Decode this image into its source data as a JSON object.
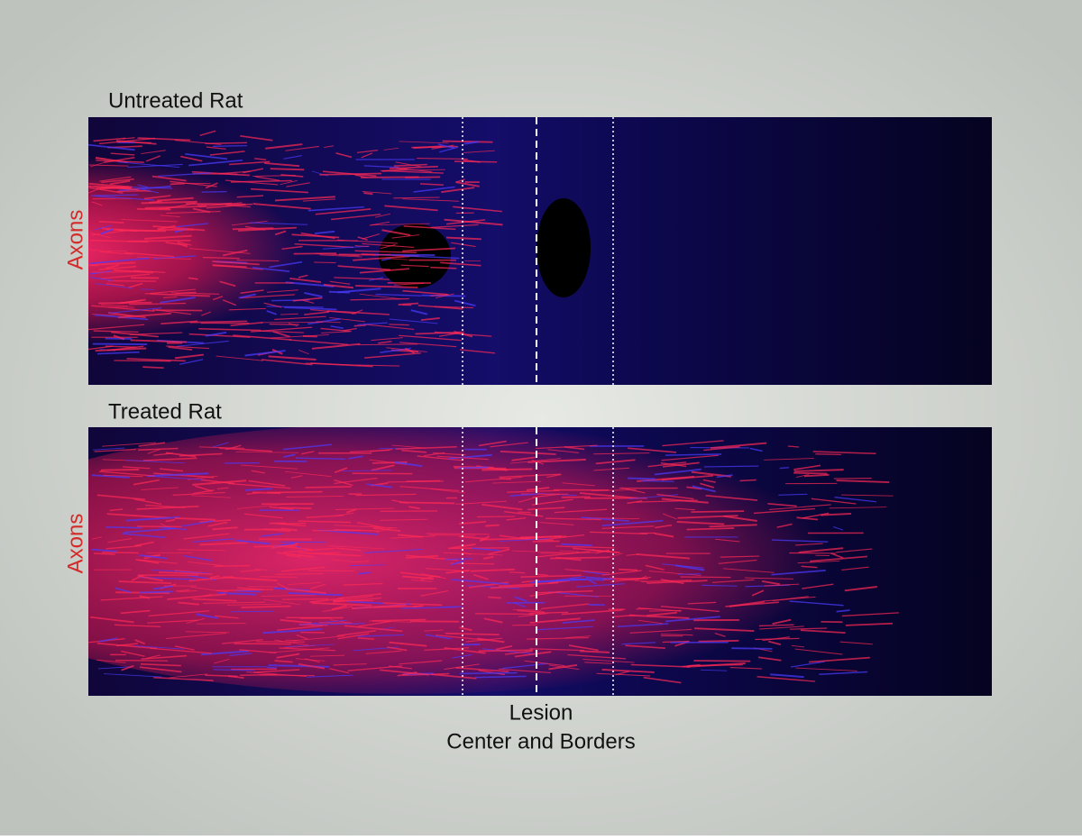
{
  "panels": [
    {
      "title": "Untreated Rat",
      "y_label": "Axons"
    },
    {
      "title": "Treated Rat",
      "y_label": "Axons"
    }
  ],
  "x_label": {
    "lines": [
      "Lesion",
      "Center and Borders"
    ]
  }
}
